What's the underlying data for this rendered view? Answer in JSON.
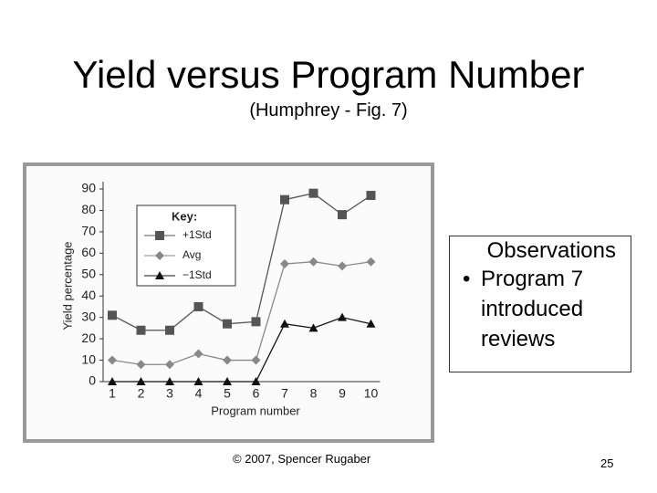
{
  "title": "Yield versus Program Number",
  "subtitle": "(Humphrey - Fig. 7)",
  "chart_data": {
    "type": "line",
    "x_label": "Program number",
    "y_label": "Yield percentage",
    "legend_title": "Key:",
    "legend_position": "upper left",
    "categories": [
      "1",
      "2",
      "3",
      "4",
      "5",
      "6",
      "7",
      "8",
      "9",
      "10"
    ],
    "series": [
      {
        "name": "+1Std",
        "color": "#555555",
        "marker": "square",
        "values": [
          31,
          24,
          24,
          35,
          27,
          28,
          85,
          88,
          78,
          87
        ]
      },
      {
        "name": "Avg",
        "color": "#888888",
        "marker": "diamond",
        "values": [
          10,
          8,
          8,
          13,
          10,
          10,
          55,
          56,
          54,
          56
        ]
      },
      {
        "name": "−1Std",
        "color": "#111111",
        "marker": "triangle",
        "values": [
          0,
          0,
          0,
          0,
          0,
          0,
          27,
          25,
          30,
          27
        ]
      }
    ],
    "ylim": [
      0,
      90
    ],
    "yticks": [
      0,
      10,
      20,
      30,
      40,
      50,
      60,
      70,
      80,
      90
    ]
  },
  "observations": {
    "heading": "Observations",
    "bullets": [
      "Program 7 introduced reviews"
    ]
  },
  "footer": "© 2007, Spencer Rugaber",
  "page_number": "25"
}
